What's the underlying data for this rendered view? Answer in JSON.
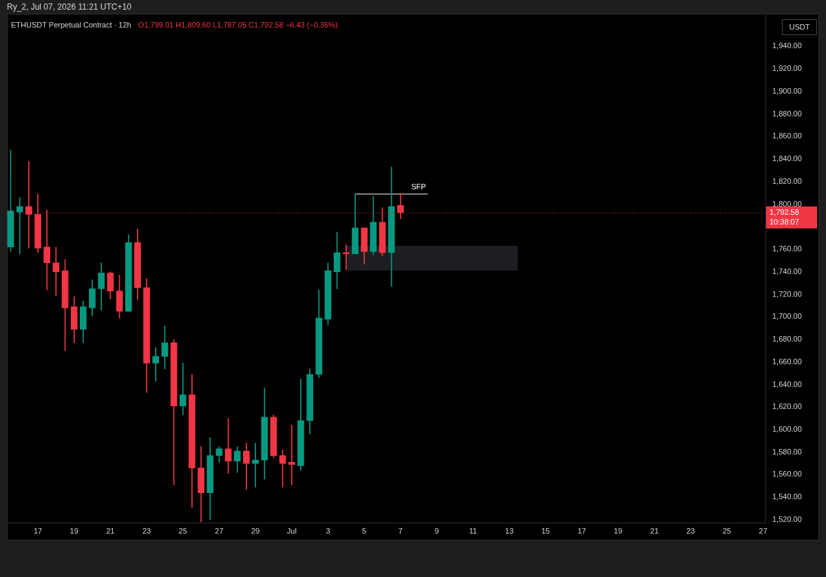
{
  "chart_data": {
    "type": "candlestick",
    "title": "ETHUSDT Perpetual Contract · 12h",
    "subtitle": "O1,799.01 H1,809.60 L1,787.05 C1,792.58 −6.43 (−0.36%)",
    "ylabel": "USDT",
    "annotations": [
      "Ry_2, Jul 07, 2026 11:21 UTC+10",
      {
        "text": "SFP",
        "x": "2026-07-08T00:00",
        "y": 1809
      }
    ],
    "x": [
      "2026-06-15T12:00",
      "2026-06-16T00:00",
      "2026-06-16T12:00",
      "2026-06-17T00:00",
      "2026-06-17T12:00",
      "2026-06-18T00:00",
      "2026-06-18T12:00",
      "2026-06-19T00:00",
      "2026-06-19T12:00",
      "2026-06-20T00:00",
      "2026-06-20T12:00",
      "2026-06-21T00:00",
      "2026-06-21T12:00",
      "2026-06-22T00:00",
      "2026-06-22T12:00",
      "2026-06-23T00:00",
      "2026-06-23T12:00",
      "2026-06-24T00:00",
      "2026-06-24T12:00",
      "2026-06-25T00:00",
      "2026-06-25T12:00",
      "2026-06-26T00:00",
      "2026-06-26T12:00",
      "2026-06-27T00:00",
      "2026-06-27T12:00",
      "2026-06-28T00:00",
      "2026-06-28T12:00",
      "2026-06-29T00:00",
      "2026-06-29T12:00",
      "2026-06-30T00:00",
      "2026-06-30T12:00",
      "2026-07-01T00:00",
      "2026-07-01T12:00",
      "2026-07-02T00:00",
      "2026-07-02T12:00",
      "2026-07-03T00:00",
      "2026-07-03T12:00",
      "2026-07-04T00:00",
      "2026-07-04T12:00",
      "2026-07-05T00:00",
      "2026-07-05T12:00",
      "2026-07-06T00:00",
      "2026-07-06T12:00",
      "2026-07-07T00:00"
    ],
    "ohlc": [
      [
        1762,
        1848,
        1758,
        1794
      ],
      [
        1793,
        1806,
        1756,
        1798
      ],
      [
        1798,
        1838,
        1761,
        1791
      ],
      [
        1791,
        1809,
        1757,
        1761
      ],
      [
        1762,
        1795,
        1724,
        1748
      ],
      [
        1748,
        1762,
        1719,
        1740
      ],
      [
        1741,
        1751,
        1670,
        1708
      ],
      [
        1709,
        1718,
        1677,
        1689
      ],
      [
        1689,
        1714,
        1677,
        1709
      ],
      [
        1708,
        1733,
        1701,
        1725
      ],
      [
        1725,
        1748,
        1706,
        1739
      ],
      [
        1739,
        1740,
        1716,
        1723
      ],
      [
        1723,
        1737,
        1699,
        1705
      ],
      [
        1705,
        1773,
        1705,
        1766
      ],
      [
        1766,
        1778,
        1715,
        1726
      ],
      [
        1726,
        1734,
        1633,
        1659
      ],
      [
        1659,
        1673,
        1643,
        1665
      ],
      [
        1665,
        1692,
        1654,
        1677
      ],
      [
        1677,
        1680,
        1551,
        1621
      ],
      [
        1621,
        1659,
        1613,
        1631
      ],
      [
        1631,
        1649,
        1531,
        1566
      ],
      [
        1566,
        1585,
        1518,
        1544
      ],
      [
        1544,
        1593,
        1520,
        1577
      ],
      [
        1577,
        1585,
        1571,
        1583
      ],
      [
        1583,
        1610,
        1561,
        1572
      ],
      [
        1572,
        1585,
        1562,
        1581
      ],
      [
        1581,
        1588,
        1547,
        1570
      ],
      [
        1570,
        1588,
        1549,
        1573
      ],
      [
        1573,
        1637,
        1556,
        1611
      ],
      [
        1611,
        1613,
        1575,
        1577
      ],
      [
        1577,
        1582,
        1549,
        1570
      ],
      [
        1571,
        1604,
        1551,
        1569
      ],
      [
        1568,
        1645,
        1564,
        1608
      ],
      [
        1608,
        1654,
        1596,
        1649
      ],
      [
        1649,
        1724,
        1646,
        1699
      ],
      [
        1698,
        1748,
        1693,
        1741
      ],
      [
        1740,
        1775,
        1725,
        1757
      ],
      [
        1757,
        1764,
        1742,
        1756
      ],
      [
        1756,
        1809,
        1756,
        1779
      ],
      [
        1779,
        1779,
        1747,
        1758
      ],
      [
        1758,
        1807,
        1755,
        1784
      ],
      [
        1784,
        1797,
        1754,
        1757
      ],
      [
        1757,
        1833,
        1727,
        1798
      ],
      [
        1799.01,
        1809.6,
        1787.05,
        1792.58
      ]
    ],
    "colors": [
      "#089981",
      "#089981",
      "#f23645",
      "#f23645",
      "#f23645",
      "#f23645",
      "#f23645",
      "#f23645",
      "#089981",
      "#089981",
      "#089981",
      "#f23645",
      "#f23645",
      "#089981",
      "#f23645",
      "#f23645",
      "#089981",
      "#089981",
      "#f23645",
      "#089981",
      "#f23645",
      "#f23645",
      "#089981",
      "#089981",
      "#f23645",
      "#089981",
      "#f23645",
      "#089981",
      "#089981",
      "#f23645",
      "#f23645",
      "#f23645",
      "#089981",
      "#089981",
      "#089981",
      "#089981",
      "#089981",
      "#f23645",
      "#089981",
      "#f23645",
      "#089981",
      "#f23645",
      "#089981",
      "#f23645"
    ],
    "series": [
      {
        "type": "line",
        "color": "#ffffff",
        "x": [
          "2026-07-04T12:00",
          "2026-07-08T12:00"
        ],
        "values": [
          1809,
          1809
        ]
      }
    ],
    "xlim": [
      "2026-06-15T07:00",
      "2026-07-27T03:00"
    ],
    "xticks": [
      {
        "value": "2026-06-17",
        "label": "17"
      },
      {
        "value": "2026-06-19",
        "label": "19"
      },
      {
        "value": "2026-06-21",
        "label": "21"
      },
      {
        "value": "2026-06-23",
        "label": "23"
      },
      {
        "value": "2026-06-25",
        "label": "25"
      },
      {
        "value": "2026-06-27",
        "label": "27"
      },
      {
        "value": "2026-06-29",
        "label": "29"
      },
      {
        "value": "2026-07-01",
        "label": "Jul"
      },
      {
        "value": "2026-07-03",
        "label": "3"
      },
      {
        "value": "2026-07-05",
        "label": "5"
      },
      {
        "value": "2026-07-07",
        "label": "7"
      },
      {
        "value": "2026-07-09",
        "label": "9"
      },
      {
        "value": "2026-07-11",
        "label": "11"
      },
      {
        "value": "2026-07-13",
        "label": "13"
      },
      {
        "value": "2026-07-15",
        "label": "15"
      },
      {
        "value": "2026-07-17",
        "label": "17"
      },
      {
        "value": "2026-07-19",
        "label": "19"
      },
      {
        "value": "2026-07-21",
        "label": "21"
      },
      {
        "value": "2026-07-23",
        "label": "23"
      },
      {
        "value": "2026-07-25",
        "label": "25"
      },
      {
        "value": "2026-07-27",
        "label": "27"
      }
    ],
    "ylim": [
      1517,
      1969
    ],
    "yticks": [
      {
        "value": 1520,
        "label": "1,520.00"
      },
      {
        "value": 1540,
        "label": "1,540.00"
      },
      {
        "value": 1560,
        "label": "1,560.00"
      },
      {
        "value": 1580,
        "label": "1,580.00"
      },
      {
        "value": 1600,
        "label": "1,600.00"
      },
      {
        "value": 1620,
        "label": "1,620.00"
      },
      {
        "value": 1640,
        "label": "1,640.00"
      },
      {
        "value": 1660,
        "label": "1,660.00"
      },
      {
        "value": 1680,
        "label": "1,680.00"
      },
      {
        "value": 1700,
        "label": "1,700.00"
      },
      {
        "value": 1720,
        "label": "1,720.00"
      },
      {
        "value": 1740,
        "label": "1,740.00"
      },
      {
        "value": 1760,
        "label": "1,760.00"
      },
      {
        "value": 1800,
        "label": "1,800.00"
      },
      {
        "value": 1820,
        "label": "1,820.00"
      },
      {
        "value": 1840,
        "label": "1,840.00"
      },
      {
        "value": 1860,
        "label": "1,860.00"
      },
      {
        "value": 1880,
        "label": "1,880.00"
      },
      {
        "value": 1900,
        "label": "1,900.00"
      },
      {
        "value": 1920,
        "label": "1,920.00"
      },
      {
        "value": 1940,
        "label": "1,940.00"
      }
    ],
    "ref_lines": [
      {
        "axis": "y",
        "value": 1792.58,
        "label": "1,792.58\n10:38:07",
        "color": "#f23645",
        "line_style": "dotted"
      }
    ],
    "grid": false,
    "legend": false
  }
}
